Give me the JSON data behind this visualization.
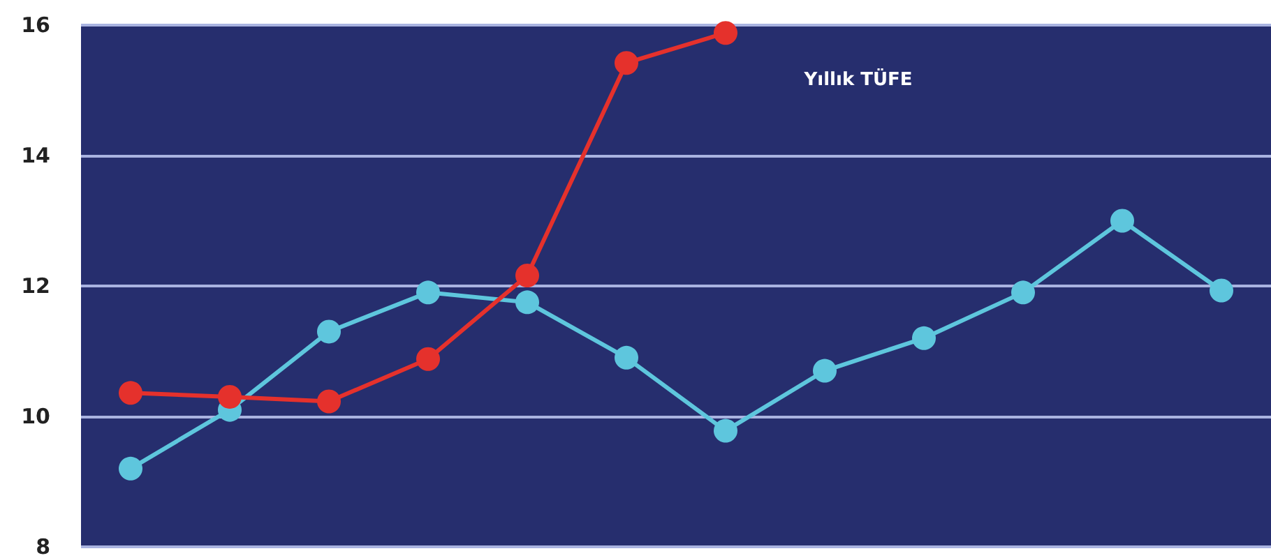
{
  "chart_data": {
    "type": "line",
    "categories": [
      null,
      null,
      null,
      null,
      null,
      null,
      null,
      null,
      null,
      null,
      null,
      null
    ],
    "series": [
      {
        "color": "#5ec6dd",
        "values": [
          9.2,
          10.1,
          11.3,
          11.9,
          11.75,
          10.9,
          9.78,
          10.7,
          11.2,
          11.9,
          13.0,
          11.93
        ]
      },
      {
        "name": "Yıllık TÜFE",
        "color": "#e5312c",
        "values": [
          10.36,
          10.3,
          10.23,
          10.88,
          12.16,
          15.42,
          15.88,
          null,
          null,
          null,
          null,
          null
        ]
      }
    ],
    "ylim": [
      8,
      16
    ],
    "yticks": [
      8,
      10,
      12,
      14,
      16
    ],
    "grid": "y",
    "legend": false,
    "tick_labels": "y",
    "marker": "circle",
    "line_style": "solid"
  }
}
